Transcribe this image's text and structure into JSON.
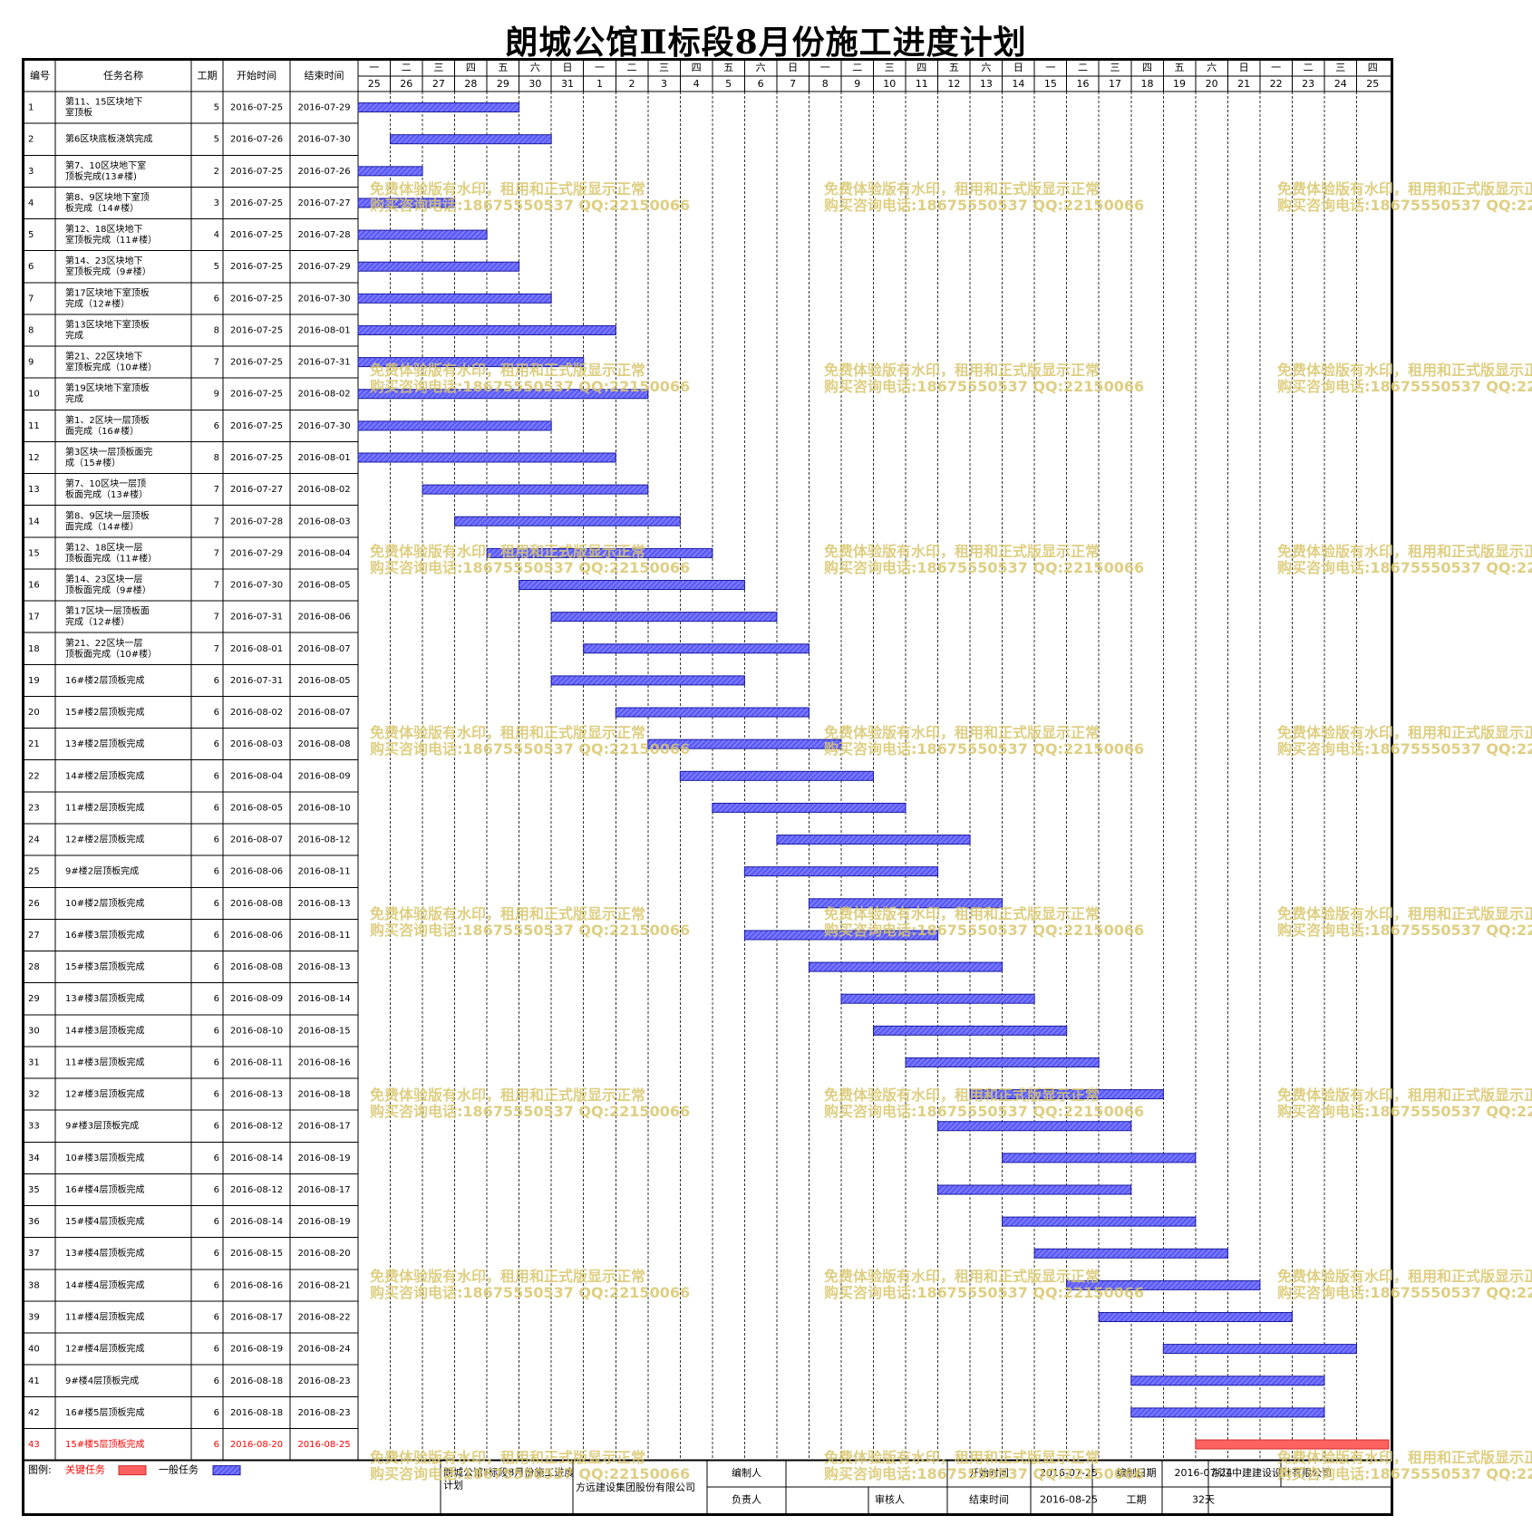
{
  "title": "朗城公馆Ⅱ标段8月份施工进度计划",
  "columns": {
    "id": "编号",
    "name": "任务名称",
    "dur": "工期",
    "start": "开始时间",
    "end": "结束时间"
  },
  "timeline": {
    "weekdays": [
      "一",
      "二",
      "三",
      "四",
      "五",
      "六",
      "日",
      "一",
      "二",
      "三",
      "四",
      "五",
      "六",
      "日",
      "一",
      "二",
      "三",
      "四",
      "五",
      "六",
      "日",
      "一",
      "二",
      "三",
      "四",
      "五",
      "六",
      "日",
      "一",
      "二",
      "三",
      "四"
    ],
    "days": [
      "25",
      "26",
      "27",
      "28",
      "29",
      "30",
      "31",
      "1",
      "2",
      "3",
      "4",
      "5",
      "6",
      "7",
      "8",
      "9",
      "10",
      "11",
      "12",
      "13",
      "14",
      "15",
      "16",
      "17",
      "18",
      "19",
      "20",
      "21",
      "22",
      "23",
      "24",
      "25"
    ],
    "base_date": "2016-07-25"
  },
  "tasks": [
    {
      "id": "1",
      "name": "第11、15区块地下室顶板",
      "dur": "5",
      "start": "2016-07-25",
      "end": "2016-07-29"
    },
    {
      "id": "2",
      "name": "第6区块底板浇筑完成",
      "dur": "5",
      "start": "2016-07-26",
      "end": "2016-07-30"
    },
    {
      "id": "3",
      "name": "第7、10区块地下室顶板完成(13#楼)",
      "dur": "2",
      "start": "2016-07-25",
      "end": "2016-07-26"
    },
    {
      "id": "4",
      "name": "第8、9区块地下室顶板完成（14#楼）",
      "dur": "3",
      "start": "2016-07-25",
      "end": "2016-07-27"
    },
    {
      "id": "5",
      "name": "第12、18区块地下室顶板完成（11#楼）",
      "dur": "4",
      "start": "2016-07-25",
      "end": "2016-07-28"
    },
    {
      "id": "6",
      "name": "第14、23区块地下室顶板完成（9#楼）",
      "dur": "5",
      "start": "2016-07-25",
      "end": "2016-07-29"
    },
    {
      "id": "7",
      "name": "第17区块地下室顶板完成（12#楼）",
      "dur": "6",
      "start": "2016-07-25",
      "end": "2016-07-30"
    },
    {
      "id": "8",
      "name": "第13区块地下室顶板完成",
      "dur": "8",
      "start": "2016-07-25",
      "end": "2016-08-01"
    },
    {
      "id": "9",
      "name": "第21、22区块地下室顶板完成（10#楼）",
      "dur": "7",
      "start": "2016-07-25",
      "end": "2016-07-31"
    },
    {
      "id": "10",
      "name": "第19区块地下室顶板完成",
      "dur": "9",
      "start": "2016-07-25",
      "end": "2016-08-02"
    },
    {
      "id": "11",
      "name": "第1、2区块一层顶板面完成（16#楼）",
      "dur": "6",
      "start": "2016-07-25",
      "end": "2016-07-30"
    },
    {
      "id": "12",
      "name": "第3区块一层顶板面完成（15#楼）",
      "dur": "8",
      "start": "2016-07-25",
      "end": "2016-08-01"
    },
    {
      "id": "13",
      "name": "第7、10区块一层顶板面完成（13#楼）",
      "dur": "7",
      "start": "2016-07-27",
      "end": "2016-08-02"
    },
    {
      "id": "14",
      "name": "第8、9区块一层顶板面完成（14#楼）",
      "dur": "7",
      "start": "2016-07-28",
      "end": "2016-08-03"
    },
    {
      "id": "15",
      "name": "第12、18区块一层顶板面完成（11#楼）",
      "dur": "7",
      "start": "2016-07-29",
      "end": "2016-08-04"
    },
    {
      "id": "16",
      "name": "第14、23区块一层顶板面完成（9#楼）",
      "dur": "7",
      "start": "2016-07-30",
      "end": "2016-08-05"
    },
    {
      "id": "17",
      "name": "第17区块一层顶板面完成（12#楼）",
      "dur": "7",
      "start": "2016-07-31",
      "end": "2016-08-06"
    },
    {
      "id": "18",
      "name": "第21、22区块一层顶板面完成（10#楼）",
      "dur": "7",
      "start": "2016-08-01",
      "end": "2016-08-07"
    },
    {
      "id": "19",
      "name": "16#楼2层顶板完成",
      "dur": "6",
      "start": "2016-07-31",
      "end": "2016-08-05"
    },
    {
      "id": "20",
      "name": "15#楼2层顶板完成",
      "dur": "6",
      "start": "2016-08-02",
      "end": "2016-08-07"
    },
    {
      "id": "21",
      "name": "13#楼2层顶板完成",
      "dur": "6",
      "start": "2016-08-03",
      "end": "2016-08-08"
    },
    {
      "id": "22",
      "name": "14#楼2层顶板完成",
      "dur": "6",
      "start": "2016-08-04",
      "end": "2016-08-09"
    },
    {
      "id": "23",
      "name": "11#楼2层顶板完成",
      "dur": "6",
      "start": "2016-08-05",
      "end": "2016-08-10"
    },
    {
      "id": "24",
      "name": "12#楼2层顶板完成",
      "dur": "6",
      "start": "2016-08-07",
      "end": "2016-08-12"
    },
    {
      "id": "25",
      "name": "9#楼2层顶板完成",
      "dur": "6",
      "start": "2016-08-06",
      "end": "2016-08-11"
    },
    {
      "id": "26",
      "name": "10#楼2层顶板完成",
      "dur": "6",
      "start": "2016-08-08",
      "end": "2016-08-13"
    },
    {
      "id": "27",
      "name": "16#楼3层顶板完成",
      "dur": "6",
      "start": "2016-08-06",
      "end": "2016-08-11"
    },
    {
      "id": "28",
      "name": "15#楼3层顶板完成",
      "dur": "6",
      "start": "2016-08-08",
      "end": "2016-08-13"
    },
    {
      "id": "29",
      "name": "13#楼3层顶板完成",
      "dur": "6",
      "start": "2016-08-09",
      "end": "2016-08-14"
    },
    {
      "id": "30",
      "name": "14#楼3层顶板完成",
      "dur": "6",
      "start": "2016-08-10",
      "end": "2016-08-15"
    },
    {
      "id": "31",
      "name": "11#楼3层顶板完成",
      "dur": "6",
      "start": "2016-08-11",
      "end": "2016-08-16"
    },
    {
      "id": "32",
      "name": "12#楼3层顶板完成",
      "dur": "6",
      "start": "2016-08-13",
      "end": "2016-08-18"
    },
    {
      "id": "33",
      "name": "9#楼3层顶板完成",
      "dur": "6",
      "start": "2016-08-12",
      "end": "2016-08-17"
    },
    {
      "id": "34",
      "name": "10#楼3层顶板完成",
      "dur": "6",
      "start": "2016-08-14",
      "end": "2016-08-19"
    },
    {
      "id": "35",
      "name": "16#楼4层顶板完成",
      "dur": "6",
      "start": "2016-08-12",
      "end": "2016-08-17"
    },
    {
      "id": "36",
      "name": "15#楼4层顶板完成",
      "dur": "6",
      "start": "2016-08-14",
      "end": "2016-08-19"
    },
    {
      "id": "37",
      "name": "13#楼4层顶板完成",
      "dur": "6",
      "start": "2016-08-15",
      "end": "2016-08-20"
    },
    {
      "id": "38",
      "name": "14#楼4层顶板完成",
      "dur": "6",
      "start": "2016-08-16",
      "end": "2016-08-21"
    },
    {
      "id": "39",
      "name": "11#楼4层顶板完成",
      "dur": "6",
      "start": "2016-08-17",
      "end": "2016-08-22"
    },
    {
      "id": "40",
      "name": "12#楼4层顶板完成",
      "dur": "6",
      "start": "2016-08-19",
      "end": "2016-08-24"
    },
    {
      "id": "41",
      "name": "9#楼4层顶板完成",
      "dur": "6",
      "start": "2016-08-18",
      "end": "2016-08-23"
    },
    {
      "id": "42",
      "name": "16#楼5层顶板完成",
      "dur": "6",
      "start": "2016-08-18",
      "end": "2016-08-23"
    },
    {
      "id": "43",
      "name": "15#楼5层顶板完成",
      "dur": "6",
      "start": "2016-08-20",
      "end": "2016-08-25",
      "critical": true
    }
  ],
  "legend": {
    "label": "图例:",
    "critical": "关键任务",
    "normal": "一般任务"
  },
  "colors": {
    "normal_bar": "#5b5bff",
    "critical_bar": "#ff6060",
    "critical_text": "#ff0000",
    "watermark": "#d9c76e"
  },
  "footer": {
    "plan_name": "朗城公馆Ⅱ标段8月份施工进度计划",
    "company": "方远建设集团股份有限公司",
    "compiler_label": "编制人",
    "owner_label": "负责人",
    "reviewer_label": "审核人",
    "start_label": "开始时间",
    "start_value": "2016-07-25",
    "end_label": "结束时间",
    "end_value": "2016-08-25",
    "date_label": "编制日期",
    "date_value": "2016-07-24",
    "dur_label": "工期",
    "dur_value": "32天",
    "org": "浙江中建建设设计有限公司"
  },
  "watermark": {
    "line1": "免费体验版有水印，租用和正式版显示正常",
    "line2": "购买咨询电话:18675550537 QQ:22150066"
  }
}
